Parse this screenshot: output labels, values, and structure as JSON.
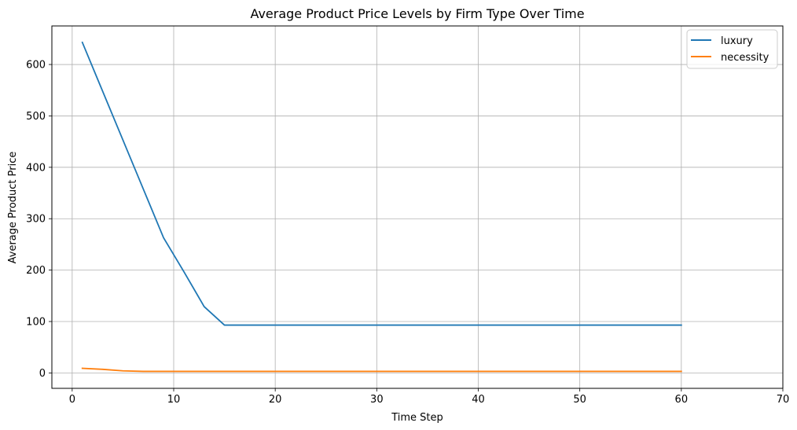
{
  "chart_data": {
    "type": "line",
    "title": "Average Product Price Levels by Firm Type Over Time",
    "xlabel": "Time Step",
    "ylabel": "Average Product Price",
    "xlim": [
      -2,
      70
    ],
    "ylim": [
      -30,
      675
    ],
    "xticks": [
      0,
      10,
      20,
      30,
      40,
      50,
      60,
      70
    ],
    "yticks": [
      0,
      100,
      200,
      300,
      400,
      500,
      600
    ],
    "grid": true,
    "legend_position": "top-right",
    "series": [
      {
        "name": "luxury",
        "color": "#1f77b4",
        "points": [
          [
            1,
            643
          ],
          [
            3,
            548
          ],
          [
            5,
            453
          ],
          [
            7,
            358
          ],
          [
            9,
            263
          ],
          [
            11,
            197
          ],
          [
            13,
            129
          ],
          [
            15,
            93
          ],
          [
            20,
            93
          ],
          [
            25,
            93
          ],
          [
            30,
            93
          ],
          [
            35,
            93
          ],
          [
            40,
            93
          ],
          [
            45,
            93
          ],
          [
            50,
            93
          ],
          [
            55,
            93
          ],
          [
            60,
            93
          ]
        ]
      },
      {
        "name": "necessity",
        "color": "#ff7f0e",
        "points": [
          [
            1,
            9
          ],
          [
            3,
            7
          ],
          [
            5,
            4
          ],
          [
            7,
            3
          ],
          [
            10,
            3
          ],
          [
            20,
            3
          ],
          [
            30,
            3
          ],
          [
            40,
            3
          ],
          [
            50,
            3
          ],
          [
            60,
            3
          ]
        ]
      }
    ]
  }
}
